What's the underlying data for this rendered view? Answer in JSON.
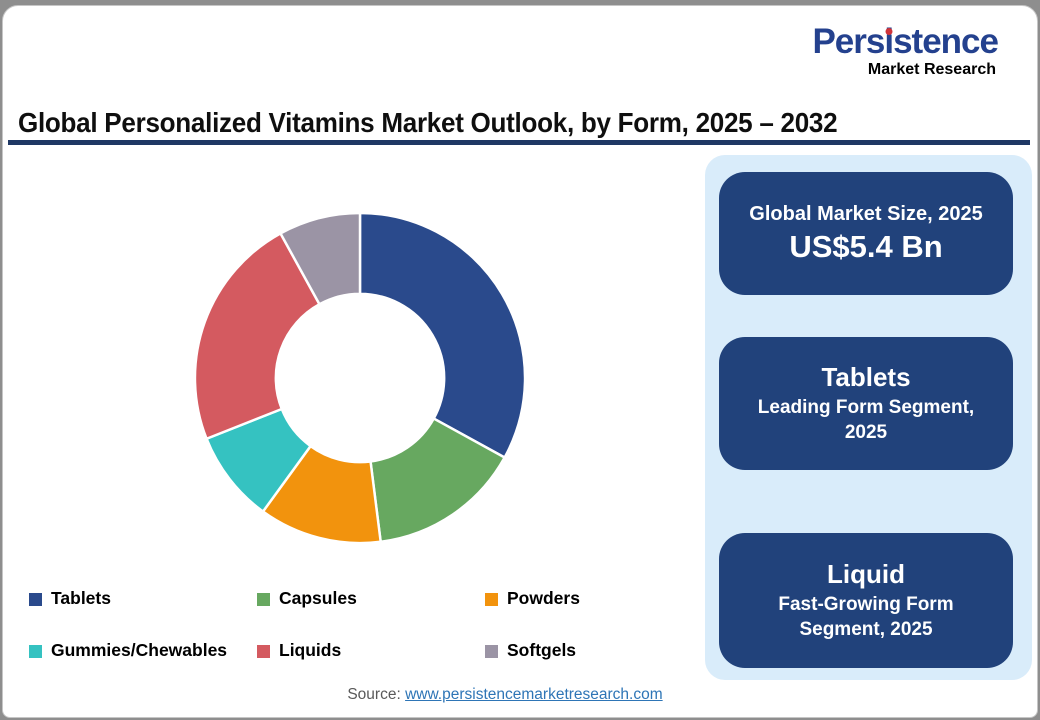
{
  "logo": {
    "brand_pre": "Pers",
    "brand_i": "i",
    "brand_post": "stence",
    "tagline": "Market Research"
  },
  "header": {
    "title": "Global Personalized Vitamins Market Outlook, by Form, 2025 – 2032"
  },
  "chart_data": {
    "type": "pie",
    "subtype": "donut",
    "title": "Global Personalized Vitamins Market Outlook, by Form, 2025 – 2032",
    "categories": [
      "Tablets",
      "Capsules",
      "Powders",
      "Gummies/Chewables",
      "Liquids",
      "Softgels"
    ],
    "values": [
      33,
      15,
      12,
      9,
      23,
      8
    ],
    "units": "% share of global market (estimated from arc angles; no data labels shown)",
    "colors": [
      "#2A4A8C",
      "#67A860",
      "#F2930D",
      "#35C2C1",
      "#D45A60",
      "#9B94A5"
    ],
    "start_angle_deg": 0,
    "clockwise": true,
    "inner_radius_ratio": 0.51,
    "legend_position": "bottom"
  },
  "cards": [
    {
      "title": "Global Market Size, 2025",
      "value": "US$5.4 Bn"
    },
    {
      "title": "Tablets",
      "subtitle": "Leading Form Segment, 2025"
    },
    {
      "title": "Liquid",
      "subtitle": "Fast-Growing Form Segment, 2025"
    }
  ],
  "source": {
    "label": "Source:",
    "link": "www.persistencemarketresearch.com"
  },
  "colors": {
    "card_navy": "#21427B",
    "panel_blue": "#D9ECFA",
    "divider_navy": "#1F3864",
    "brand_blue": "#24418E",
    "dot_red": "#CF3339",
    "link_blue": "#2E75B6",
    "source_gray": "#595959"
  }
}
